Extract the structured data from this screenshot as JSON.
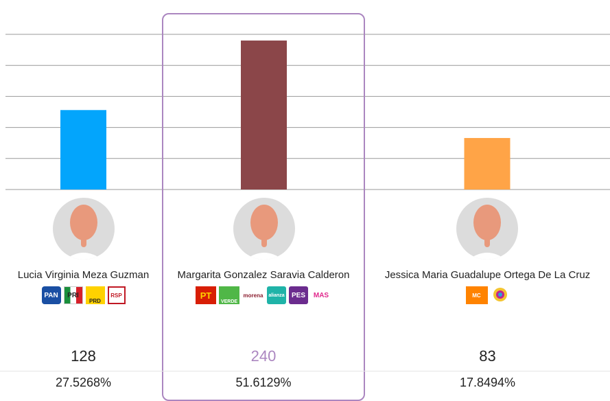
{
  "chart_data": {
    "type": "bar",
    "ylim": [
      0,
      270
    ],
    "grid": true,
    "categories": [
      "Lucia Virginia Meza Guzman",
      "Margarita Gonzalez Saravia Calderon",
      "Jessica Maria Guadalupe Ortega De La Cruz"
    ],
    "values": [
      128,
      240,
      83
    ],
    "colors": [
      "#03a5fc",
      "#8b4649",
      "#ffa447"
    ]
  },
  "candidates": [
    {
      "name": "Lucia Virginia Meza Guzman",
      "votes": "128",
      "percent": "27.5268%",
      "logos": [
        {
          "text": "PAN",
          "icon": "pan-logo"
        },
        {
          "text": "PRI",
          "icon": "pri-logo"
        },
        {
          "text": "PRD",
          "icon": "prd-logo"
        },
        {
          "text": "RSP",
          "icon": "rsp-logo"
        }
      ]
    },
    {
      "name": "Margarita Gonzalez Saravia Calderon",
      "votes": "240",
      "percent": "51.6129%",
      "winner": true,
      "logos": [
        {
          "text": "PT",
          "icon": "pt-logo"
        },
        {
          "text": "VERDE",
          "icon": "verde-logo"
        },
        {
          "text": "morena",
          "icon": "morena-logo"
        },
        {
          "text": "alianza",
          "icon": "alianza-logo"
        },
        {
          "text": "PES",
          "icon": "pes-logo"
        },
        {
          "text": "MAS",
          "icon": "mas-logo"
        }
      ]
    },
    {
      "name": "Jessica Maria Guadalupe Ortega De La Cruz",
      "votes": "83",
      "percent": "17.8494%",
      "logos": [
        {
          "text": "MC",
          "icon": "movimiento-ciudadano-logo"
        },
        {
          "text": "",
          "icon": "local-party-logo"
        }
      ]
    }
  ],
  "colors": {
    "winner_accent": "#ab86c0",
    "gridline": "#999999"
  }
}
